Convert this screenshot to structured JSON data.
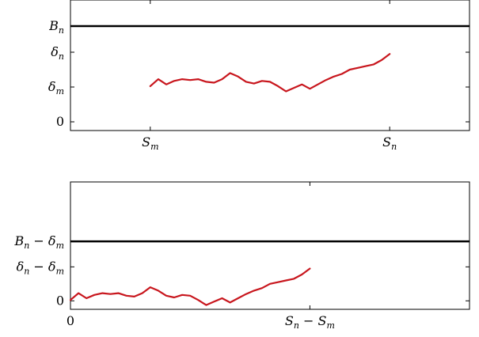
{
  "chart_data": [
    {
      "type": "line",
      "xlabel": "",
      "ylabel": "",
      "xlim": [
        -10,
        40
      ],
      "ylim": [
        -1,
        14
      ],
      "x_ticks": [
        {
          "value": 0,
          "label": "S_m"
        },
        {
          "value": 30,
          "label": "S_n"
        }
      ],
      "y_ticks": [
        {
          "value": 0,
          "label": "0"
        },
        {
          "value": 4,
          "label": "δ_m"
        },
        {
          "value": 8,
          "label": "δ_n"
        },
        {
          "value": 11,
          "label": "B_n"
        }
      ],
      "reference_line": {
        "y": 11,
        "color": "#000000"
      },
      "series": [
        {
          "color": "#c8161d",
          "x": [
            0,
            1,
            2,
            3,
            4,
            5,
            6,
            7,
            8,
            9,
            10,
            11,
            12,
            13,
            14,
            15,
            16,
            17,
            18,
            19,
            20,
            21,
            22,
            23,
            24,
            25,
            26,
            27,
            28,
            29,
            30
          ],
          "y": [
            4.1,
            4.9,
            4.3,
            4.7,
            4.9,
            4.8,
            4.9,
            4.6,
            4.5,
            4.9,
            5.6,
            5.2,
            4.6,
            4.4,
            4.7,
            4.6,
            4.1,
            3.5,
            3.9,
            4.3,
            3.8,
            4.3,
            4.8,
            5.2,
            5.5,
            6.0,
            6.2,
            6.4,
            6.6,
            7.1,
            7.8
          ]
        }
      ]
    },
    {
      "type": "line",
      "xlabel": "",
      "ylabel": "",
      "xlim": [
        0,
        50
      ],
      "ylim": [
        -1,
        14
      ],
      "x_ticks": [
        {
          "value": 0,
          "label": "0"
        },
        {
          "value": 30,
          "label": "S_n − S_m"
        }
      ],
      "y_ticks": [
        {
          "value": 0,
          "label": "0"
        },
        {
          "value": 4,
          "label": "δ_n − δ_m"
        },
        {
          "value": 7,
          "label": "B_n − δ_m"
        }
      ],
      "reference_line": {
        "y": 7,
        "color": "#000000"
      },
      "series": [
        {
          "color": "#c8161d",
          "x": [
            0,
            1,
            2,
            3,
            4,
            5,
            6,
            7,
            8,
            9,
            10,
            11,
            12,
            13,
            14,
            15,
            16,
            17,
            18,
            19,
            20,
            21,
            22,
            23,
            24,
            25,
            26,
            27,
            28,
            29,
            30
          ],
          "y": [
            0.1,
            0.9,
            0.3,
            0.7,
            0.9,
            0.8,
            0.9,
            0.6,
            0.5,
            0.9,
            1.6,
            1.2,
            0.6,
            0.4,
            0.7,
            0.6,
            0.1,
            -0.5,
            -0.1,
            0.3,
            -0.2,
            0.3,
            0.8,
            1.2,
            1.5,
            2.0,
            2.2,
            2.4,
            2.6,
            3.1,
            3.8
          ]
        }
      ]
    }
  ]
}
